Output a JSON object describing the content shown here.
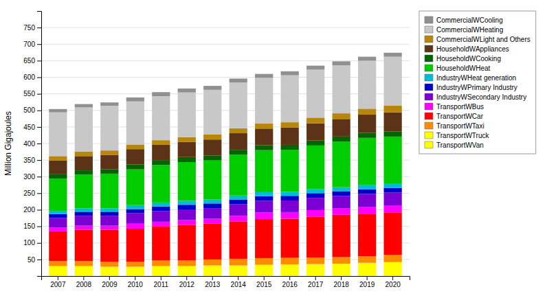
{
  "chart_data": {
    "type": "bar",
    "stacked": true,
    "categories": [
      "2007",
      "2008",
      "2009",
      "2010",
      "2011",
      "2012",
      "2013",
      "2014",
      "2015",
      "2016",
      "2017",
      "2018",
      "2019",
      "2020"
    ],
    "series": [
      {
        "name": "TransportWVan",
        "color": "#ffff00",
        "values": [
          2,
          2,
          2,
          2,
          2,
          2,
          2,
          2,
          2,
          2,
          2,
          2,
          2,
          2
        ]
      },
      {
        "name": "TransportWTruck",
        "color": "#ffff00",
        "values": [
          28,
          28,
          26,
          26,
          28,
          28,
          30,
          30,
          32,
          33,
          34,
          35,
          38,
          40
        ]
      },
      {
        "name": "TransportWTaxi",
        "color": "#ff8c00",
        "values": [
          15,
          15,
          15,
          15,
          17,
          17,
          18,
          20,
          20,
          20,
          20,
          20,
          20,
          22
        ]
      },
      {
        "name": "TransportWCar",
        "color": "#ff0000",
        "values": [
          90,
          95,
          97,
          100,
          102,
          107,
          108,
          113,
          118,
          118,
          123,
          128,
          128,
          128
        ]
      },
      {
        "name": "TransportWBus",
        "color": "#ff00ff",
        "values": [
          12,
          12,
          12,
          15,
          15,
          15,
          15,
          17,
          20,
          20,
          20,
          20,
          20,
          20
        ]
      },
      {
        "name": "IndustryWSecondary Industry",
        "color": "#7b00d4",
        "values": [
          28,
          30,
          30,
          32,
          32,
          32,
          32,
          35,
          35,
          35,
          37,
          37,
          40,
          40
        ]
      },
      {
        "name": "IndustryWPrimary Industry",
        "color": "#0000cd",
        "values": [
          12,
          12,
          12,
          12,
          14,
          14,
          14,
          14,
          14,
          14,
          14,
          14,
          14,
          14
        ]
      },
      {
        "name": "IndustryWHeat generation",
        "color": "#00bcd4",
        "values": [
          10,
          10,
          10,
          12,
          12,
          12,
          12,
          12,
          12,
          12,
          12,
          12,
          12,
          12
        ]
      },
      {
        "name": "HouseholdWHeat",
        "color": "#00cc00",
        "values": [
          97,
          102,
          105,
          108,
          113,
          117,
          118,
          123,
          127,
          127,
          132,
          138,
          143,
          143
        ]
      },
      {
        "name": "HouseholdWCooking",
        "color": "#006400",
        "values": [
          13,
          13,
          13,
          15,
          15,
          15,
          15,
          15,
          15,
          15,
          15,
          15,
          15,
          15
        ]
      },
      {
        "name": "HouseholdWAppliances",
        "color": "#5c3317",
        "values": [
          42,
          43,
          43,
          46,
          46,
          46,
          48,
          50,
          50,
          52,
          52,
          53,
          55,
          58
        ]
      },
      {
        "name": "CommercialWLight and Others",
        "color": "#b8860b",
        "values": [
          13,
          14,
          14,
          14,
          14,
          14,
          15,
          15,
          15,
          16,
          17,
          17,
          18,
          20
        ]
      },
      {
        "name": "CommercialWHeating",
        "color": "#c8c8c8",
        "values": [
          132,
          133,
          135,
          130,
          133,
          135,
          135,
          138,
          138,
          142,
          145,
          145,
          145,
          148
        ]
      },
      {
        "name": "CommercialWCooling",
        "color": "#909090",
        "values": [
          10,
          10,
          10,
          12,
          12,
          12,
          12,
          12,
          12,
          12,
          12,
          12,
          12,
          12
        ]
      }
    ],
    "ylabel": "Million Gigajoules",
    "ylim": [
      0,
      800
    ],
    "yticks": [
      50,
      100,
      150,
      200,
      250,
      300,
      350,
      400,
      450,
      500,
      550,
      600,
      650,
      700,
      750
    ],
    "grid": true,
    "legend": "right"
  }
}
